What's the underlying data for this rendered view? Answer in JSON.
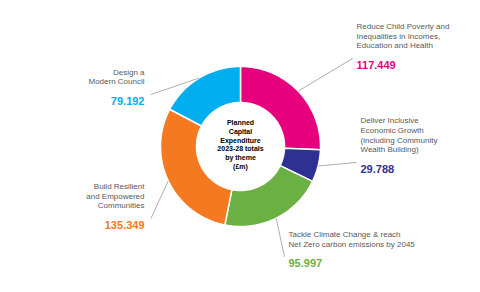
{
  "chart_data": {
    "type": "pie",
    "title": "Planned\nCapital\nExpenditure\n2023-28 totals\nby theme\n(£m)",
    "categories": [
      "Reduce Child Poverty and\nInequalities in Incomes,\nEducation and Health",
      "Deliver Inclusive\nEconomic Growth\n(including Community\nWealth Building)",
      "Tackle Climate Change & reach\nNet Zero carbon emissions by 2045",
      "Build Resilient\nand Empowered\nCommunities",
      "Design a\nModern Council"
    ],
    "values": [
      117.449,
      29.788,
      95.997,
      135.349,
      79.192
    ],
    "colors": [
      "#E6007E",
      "#2E3192",
      "#6AB042",
      "#F47920",
      "#00AEEF"
    ],
    "data_labels": true
  }
}
